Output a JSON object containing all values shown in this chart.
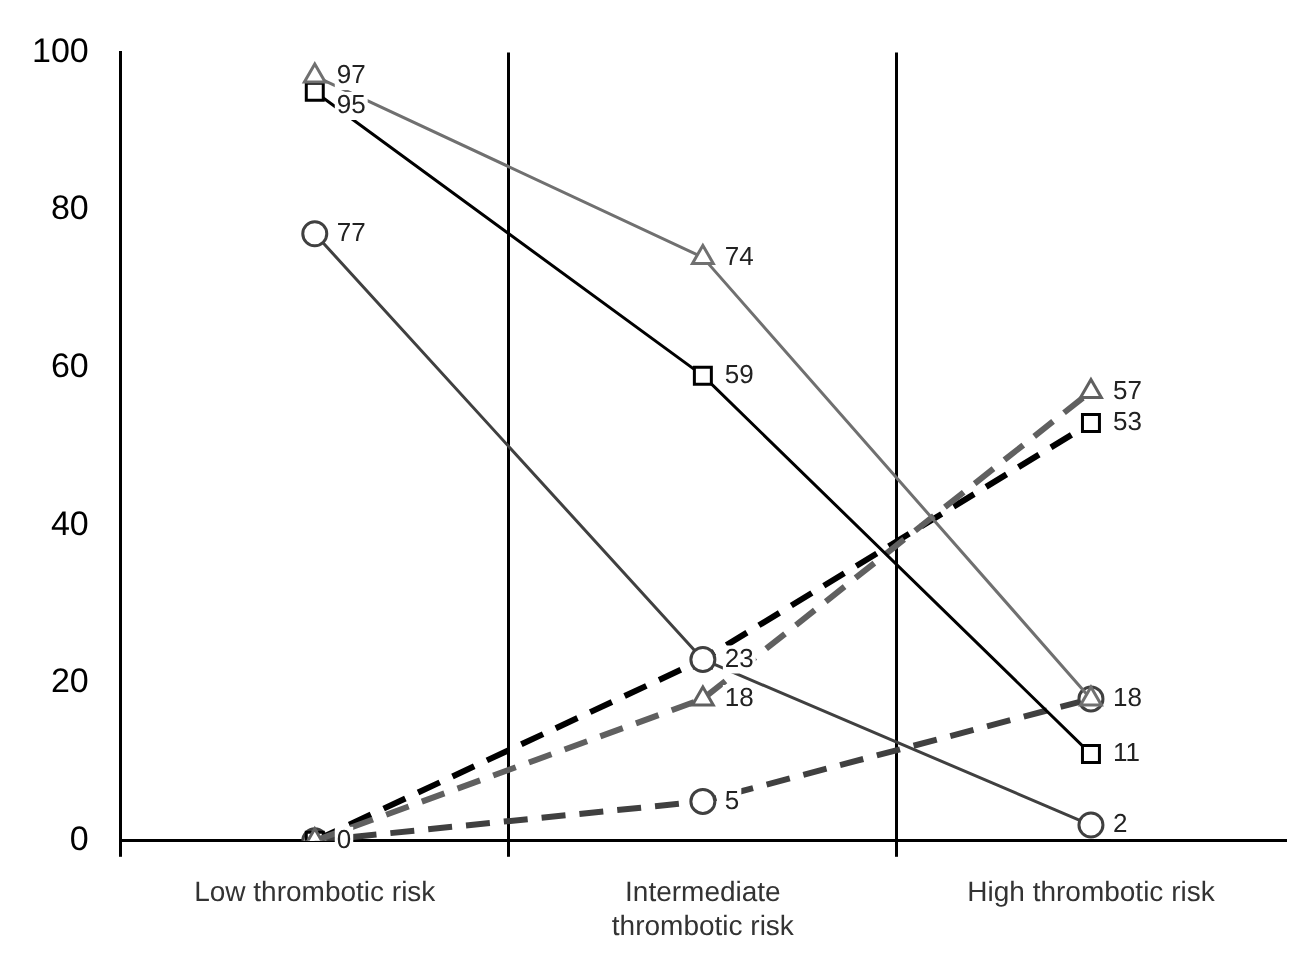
{
  "chart_data": {
    "type": "line",
    "categories": [
      "Low thrombotic risk",
      "Intermediate thrombotic risk",
      "High thrombotic risk"
    ],
    "series": [
      {
        "color": "#707070",
        "marker": "triangle",
        "line_style": "solid",
        "values": [
          97,
          74,
          18
        ],
        "value_labels": [
          "97",
          "74",
          null
        ]
      },
      {
        "color": "#000000",
        "marker": "square",
        "line_style": "solid",
        "values": [
          95,
          59,
          11
        ],
        "value_labels": [
          "95",
          "59",
          "11"
        ]
      },
      {
        "color": "#404040",
        "marker": "circle",
        "line_style": "solid",
        "values": [
          77,
          23,
          2
        ],
        "value_labels": [
          "77",
          null,
          "2"
        ]
      },
      {
        "color": "#606060",
        "marker": "triangle",
        "line_style": "dashed",
        "values": [
          0,
          18,
          57
        ],
        "value_labels": [
          null,
          "18",
          "57"
        ]
      },
      {
        "color": "#000000",
        "marker": "square",
        "line_style": "dashed",
        "values": [
          0,
          23,
          53
        ],
        "value_labels": [
          "0",
          "23",
          "53"
        ]
      },
      {
        "color": "#404040",
        "marker": "circle",
        "line_style": "dashed",
        "values": [
          0,
          5,
          18
        ],
        "value_labels": [
          null,
          "5",
          "18"
        ]
      }
    ],
    "ylim": [
      0,
      100
    ],
    "yticks": [
      0,
      20,
      40,
      60,
      80,
      100
    ],
    "grid": "x",
    "legend": false
  }
}
